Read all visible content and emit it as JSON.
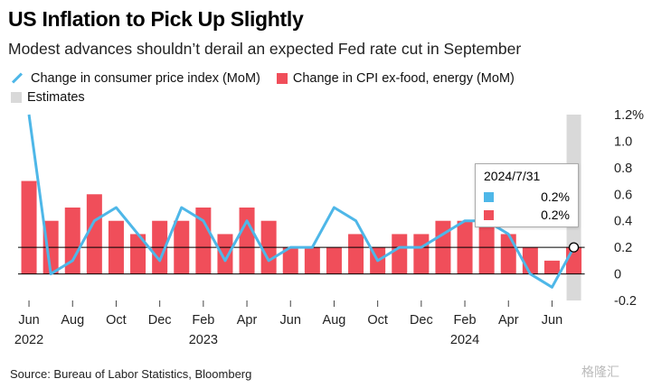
{
  "title": "US Inflation to Pick Up Slightly",
  "subtitle": "Modest advances shouldn’t derail an expected Fed rate cut in September",
  "watermark": "格隆汇",
  "source": "Source: Bureau of Labor Statistics, Bloomberg",
  "colors": {
    "line": "#4eb7e8",
    "bar": "#f04e5a",
    "estimate": "#d9d9d9",
    "baseline": "#000000",
    "grid": "#cccccc"
  },
  "tooltip": {
    "title": "2024/7/31",
    "line_value": "0.2%",
    "bar_value": "0.2%"
  },
  "chart_data": {
    "type": "bar+line",
    "categories": [
      "2022-06",
      "2022-07",
      "2022-08",
      "2022-09",
      "2022-10",
      "2022-11",
      "2022-12",
      "2023-01",
      "2023-02",
      "2023-03",
      "2023-04",
      "2023-05",
      "2023-06",
      "2023-07",
      "2023-08",
      "2023-09",
      "2023-10",
      "2023-11",
      "2023-12",
      "2024-01",
      "2024-02",
      "2024-03",
      "2024-04",
      "2024-05",
      "2024-06",
      "2024-07"
    ],
    "series": [
      {
        "name": "Change in consumer price index (MoM)",
        "kind": "line",
        "values": [
          1.2,
          0.0,
          0.1,
          0.4,
          0.5,
          0.3,
          0.1,
          0.5,
          0.4,
          0.1,
          0.4,
          0.1,
          0.2,
          0.2,
          0.5,
          0.4,
          0.1,
          0.2,
          0.2,
          0.3,
          0.4,
          0.4,
          0.3,
          0.0,
          -0.1,
          0.2
        ]
      },
      {
        "name": "Change in CPI ex-food, energy (MoM)",
        "kind": "bar",
        "values": [
          0.7,
          0.4,
          0.5,
          0.6,
          0.4,
          0.3,
          0.4,
          0.4,
          0.5,
          0.3,
          0.5,
          0.4,
          0.2,
          0.2,
          0.2,
          0.3,
          0.2,
          0.3,
          0.3,
          0.4,
          0.4,
          0.4,
          0.3,
          0.2,
          0.1,
          0.2
        ]
      }
    ],
    "estimates_label": "Estimates",
    "estimate_categories": [
      "2024-07"
    ],
    "y_ticks": [
      {
        "value": 1.2,
        "label": "1.2%"
      },
      {
        "value": 1.0,
        "label": "1.0"
      },
      {
        "value": 0.8,
        "label": "0.8"
      },
      {
        "value": 0.6,
        "label": "0.6"
      },
      {
        "value": 0.4,
        "label": "0.4"
      },
      {
        "value": 0.2,
        "label": "0.2"
      },
      {
        "value": 0.0,
        "label": "0"
      },
      {
        "value": -0.2,
        "label": "-0.2"
      }
    ],
    "x_ticks": [
      {
        "index": 0,
        "label": "Jun",
        "year": "2022"
      },
      {
        "index": 2,
        "label": "Aug"
      },
      {
        "index": 4,
        "label": "Oct"
      },
      {
        "index": 6,
        "label": "Dec"
      },
      {
        "index": 8,
        "label": "Feb",
        "year": "2023"
      },
      {
        "index": 10,
        "label": "Apr"
      },
      {
        "index": 12,
        "label": "Jun"
      },
      {
        "index": 14,
        "label": "Aug"
      },
      {
        "index": 16,
        "label": "Oct"
      },
      {
        "index": 18,
        "label": "Dec"
      },
      {
        "index": 20,
        "label": "Feb",
        "year": "2024"
      },
      {
        "index": 22,
        "label": "Apr"
      },
      {
        "index": 24,
        "label": "Jun"
      }
    ],
    "ylim": [
      -0.2,
      1.2
    ],
    "highlight_lines": [
      0.0,
      0.2
    ],
    "legend_position": "top-left"
  }
}
